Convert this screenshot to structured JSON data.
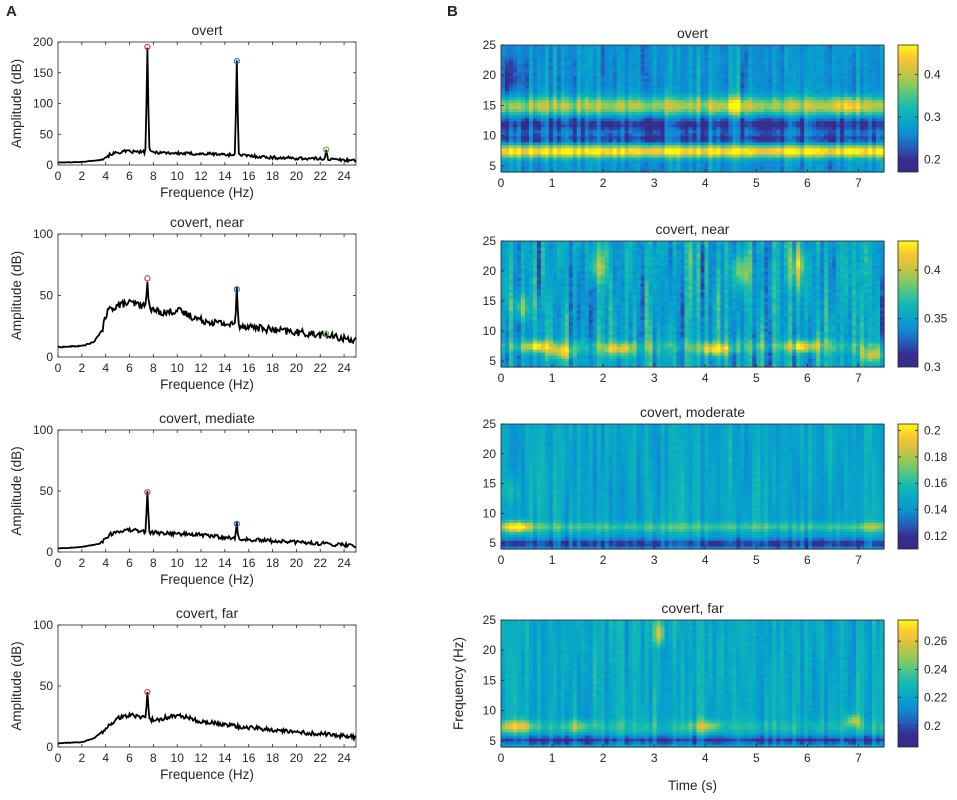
{
  "panel_labels": {
    "left": "A",
    "right": "B"
  },
  "colors": {
    "line": "#000000",
    "peak_f1": "#d62728",
    "peak_f2": "#1f5fbf",
    "peak_f3": "#5aa02c"
  },
  "chart_data": [
    {
      "id": "spec-overt",
      "type": "line",
      "title": "overt",
      "xlabel": "Frequence (Hz)",
      "ylabel": "Amplitude (dB)",
      "xlim": [
        0,
        25
      ],
      "ylim": [
        0,
        200
      ],
      "xticks": [
        0,
        2,
        4,
        6,
        8,
        10,
        12,
        14,
        16,
        18,
        20,
        22,
        24
      ],
      "yticks": [
        0,
        50,
        100,
        150,
        200
      ],
      "baseline": [
        [
          0,
          4
        ],
        [
          2,
          5
        ],
        [
          3.5,
          8
        ],
        [
          4.5,
          18
        ],
        [
          5.5,
          22
        ],
        [
          7,
          21
        ],
        [
          8,
          21
        ],
        [
          10,
          19
        ],
        [
          12,
          18
        ],
        [
          13,
          18
        ],
        [
          14,
          17
        ],
        [
          16,
          15
        ],
        [
          18,
          12
        ],
        [
          20,
          11
        ],
        [
          22,
          10
        ],
        [
          24,
          8
        ],
        [
          25,
          8
        ]
      ],
      "noise": 2.5,
      "peaks": [
        {
          "f": 7.5,
          "value": 192,
          "marker": "peak_f1"
        },
        {
          "f": 15,
          "value": 169,
          "marker": "peak_f2"
        },
        {
          "f": 22.5,
          "value": 25,
          "marker": "peak_f3"
        }
      ]
    },
    {
      "id": "spec-near",
      "type": "line",
      "title": "covert, near",
      "xlabel": "Frequence (Hz)",
      "ylabel": "Amplitude (dB)",
      "xlim": [
        0,
        25
      ],
      "ylim": [
        0,
        100
      ],
      "xticks": [
        0,
        2,
        4,
        6,
        8,
        10,
        12,
        14,
        16,
        18,
        20,
        22,
        24
      ],
      "yticks": [
        0,
        50,
        100
      ],
      "baseline": [
        [
          0,
          8
        ],
        [
          2,
          9
        ],
        [
          3,
          12
        ],
        [
          3.7,
          22
        ],
        [
          4.2,
          38
        ],
        [
          5,
          42
        ],
        [
          6,
          44
        ],
        [
          7,
          42
        ],
        [
          8,
          38
        ],
        [
          9,
          36
        ],
        [
          10,
          38
        ],
        [
          11,
          34
        ],
        [
          12,
          30
        ],
        [
          14,
          27
        ],
        [
          16,
          25
        ],
        [
          18,
          22
        ],
        [
          20,
          20
        ],
        [
          22,
          18
        ],
        [
          24,
          15
        ],
        [
          25,
          14
        ]
      ],
      "noise": 3,
      "peaks": [
        {
          "f": 7.5,
          "value": 64,
          "marker": "peak_f1"
        },
        {
          "f": 15,
          "value": 55,
          "marker": "peak_f2"
        },
        {
          "f": 22.5,
          "value": 19,
          "marker": "peak_f3"
        }
      ]
    },
    {
      "id": "spec-mediate",
      "type": "line",
      "title": "covert, mediate",
      "xlabel": "Frequence (Hz)",
      "ylabel": "Amplitude (dB)",
      "xlim": [
        0,
        25
      ],
      "ylim": [
        0,
        100
      ],
      "xticks": [
        0,
        2,
        4,
        6,
        8,
        10,
        12,
        14,
        16,
        18,
        20,
        22,
        24
      ],
      "yticks": [
        0,
        50,
        100
      ],
      "baseline": [
        [
          0,
          3
        ],
        [
          2,
          4
        ],
        [
          3.5,
          7
        ],
        [
          4.3,
          14
        ],
        [
          5,
          17
        ],
        [
          6,
          18
        ],
        [
          7,
          17
        ],
        [
          8,
          16
        ],
        [
          10,
          15
        ],
        [
          12,
          14
        ],
        [
          14,
          12
        ],
        [
          16,
          10
        ],
        [
          18,
          9
        ],
        [
          20,
          8
        ],
        [
          22,
          7
        ],
        [
          24,
          6
        ],
        [
          25,
          5
        ]
      ],
      "noise": 1.6,
      "peaks": [
        {
          "f": 7.5,
          "value": 49,
          "marker": "peak_f1"
        },
        {
          "f": 15,
          "value": 23,
          "marker": "peak_f2"
        }
      ]
    },
    {
      "id": "spec-far",
      "type": "line",
      "title": "covert, far",
      "xlabel": "Frequence (Hz)",
      "ylabel": "Amplitude (dB)",
      "xlim": [
        0,
        25
      ],
      "ylim": [
        0,
        100
      ],
      "xticks": [
        0,
        2,
        4,
        6,
        8,
        10,
        12,
        14,
        16,
        18,
        20,
        22,
        24
      ],
      "yticks": [
        0,
        50,
        100
      ],
      "baseline": [
        [
          0,
          3
        ],
        [
          2,
          4
        ],
        [
          3,
          7
        ],
        [
          4,
          15
        ],
        [
          5,
          24
        ],
        [
          6,
          26
        ],
        [
          7,
          25
        ],
        [
          8,
          22
        ],
        [
          9,
          24
        ],
        [
          10,
          26
        ],
        [
          11,
          24
        ],
        [
          12,
          21
        ],
        [
          14,
          18
        ],
        [
          16,
          16
        ],
        [
          18,
          14
        ],
        [
          20,
          12
        ],
        [
          22,
          11
        ],
        [
          24,
          9
        ],
        [
          25,
          8
        ]
      ],
      "noise": 1.8,
      "peaks": [
        {
          "f": 7.5,
          "value": 45,
          "marker": "peak_f1"
        }
      ]
    },
    {
      "id": "tf-overt",
      "type": "heatmap",
      "title": "overt",
      "xlim": [
        0,
        7.5
      ],
      "ylim": [
        4,
        25
      ],
      "xticks": [
        0,
        1,
        2,
        3,
        4,
        5,
        6,
        7
      ],
      "yticks": [
        5,
        10,
        15,
        20,
        25
      ],
      "xlabel": "",
      "ylabel": "",
      "colorbar": {
        "min": 0.17,
        "max": 0.47,
        "ticks": [
          0.2,
          0.3,
          0.4
        ]
      },
      "background": 0.27,
      "stripe_noise": 0.05,
      "bands": [
        {
          "f": 7.5,
          "width": 1.0,
          "amp": 0.2
        },
        {
          "f": 15,
          "width": 1.5,
          "amp": 0.13
        },
        {
          "f": 12,
          "width": 1.2,
          "amp": -0.06
        },
        {
          "f": 9.5,
          "width": 0.8,
          "amp": -0.05
        }
      ],
      "blobs": [
        {
          "t": 4.6,
          "f": 15,
          "st": 0.2,
          "sf": 1.5,
          "amp": 0.07
        },
        {
          "t": 6.8,
          "f": 15,
          "st": 0.3,
          "sf": 1.5,
          "amp": 0.06
        },
        {
          "t": 0.2,
          "f": 20,
          "st": 0.3,
          "sf": 4,
          "amp": -0.05
        }
      ]
    },
    {
      "id": "tf-near",
      "type": "heatmap",
      "title": "covert, near",
      "xlim": [
        0,
        7.5
      ],
      "ylim": [
        4,
        25
      ],
      "xticks": [
        0,
        1,
        2,
        3,
        4,
        5,
        6,
        7
      ],
      "yticks": [
        5,
        10,
        15,
        20,
        25
      ],
      "xlabel": "",
      "ylabel": "",
      "colorbar": {
        "min": 0.3,
        "max": 0.43,
        "ticks": [
          0.3,
          0.35,
          0.4
        ]
      },
      "background": 0.35,
      "stripe_noise": 0.035,
      "bands": [
        {
          "f": 7.5,
          "width": 1.0,
          "amp": 0.02
        }
      ],
      "blobs": [
        {
          "t": 0.7,
          "f": 7.5,
          "st": 0.3,
          "sf": 1,
          "amp": 0.06
        },
        {
          "t": 1.2,
          "f": 6.5,
          "st": 0.25,
          "sf": 1,
          "amp": 0.05
        },
        {
          "t": 2.3,
          "f": 7,
          "st": 0.3,
          "sf": 1,
          "amp": 0.05
        },
        {
          "t": 4.2,
          "f": 7,
          "st": 0.3,
          "sf": 1,
          "amp": 0.06
        },
        {
          "t": 5.9,
          "f": 7.5,
          "st": 0.3,
          "sf": 1,
          "amp": 0.06
        },
        {
          "t": 7.3,
          "f": 6,
          "st": 0.25,
          "sf": 1,
          "amp": 0.05
        },
        {
          "t": 0.4,
          "f": 14,
          "st": 0.2,
          "sf": 2,
          "amp": 0.04
        },
        {
          "t": 1.9,
          "f": 21,
          "st": 0.15,
          "sf": 3,
          "amp": 0.05
        },
        {
          "t": 4.7,
          "f": 20,
          "st": 0.15,
          "sf": 3,
          "amp": 0.05
        },
        {
          "t": 5.8,
          "f": 21,
          "st": 0.15,
          "sf": 3,
          "amp": 0.05
        }
      ]
    },
    {
      "id": "tf-moderate",
      "type": "heatmap",
      "title": "covert, moderate",
      "xlim": [
        0,
        7.5
      ],
      "ylim": [
        4,
        25
      ],
      "xticks": [
        0,
        1,
        2,
        3,
        4,
        5,
        6,
        7
      ],
      "yticks": [
        5,
        10,
        15,
        20,
        25
      ],
      "xlabel": "",
      "ylabel": "",
      "colorbar": {
        "min": 0.11,
        "max": 0.205,
        "ticks": [
          0.12,
          0.14,
          0.16,
          0.18,
          0.2
        ]
      },
      "background": 0.148,
      "stripe_noise": 0.012,
      "bands": [
        {
          "f": 7.8,
          "width": 0.7,
          "amp": 0.018
        },
        {
          "f": 5.0,
          "width": 0.8,
          "amp": -0.025
        }
      ],
      "blobs": [
        {
          "t": 0.3,
          "f": 7.8,
          "st": 0.25,
          "sf": 0.9,
          "amp": 0.055
        },
        {
          "t": 0.2,
          "f": 14,
          "st": 0.15,
          "sf": 2,
          "amp": 0.012
        },
        {
          "t": 7.3,
          "f": 7.8,
          "st": 0.3,
          "sf": 0.8,
          "amp": 0.012
        }
      ]
    },
    {
      "id": "tf-far",
      "type": "heatmap",
      "title": "covert, far",
      "xlim": [
        0,
        7.5
      ],
      "ylim": [
        4,
        25
      ],
      "xticks": [
        0,
        1,
        2,
        3,
        4,
        5,
        6,
        7
      ],
      "yticks": [
        5,
        10,
        15,
        20,
        25
      ],
      "xlabel": "Time (s)",
      "ylabel": "Frequency (Hz)",
      "colorbar": {
        "min": 0.185,
        "max": 0.275,
        "ticks": [
          0.2,
          0.22,
          0.24,
          0.26
        ]
      },
      "background": 0.222,
      "stripe_noise": 0.013,
      "bands": [
        {
          "f": 5.2,
          "width": 0.7,
          "amp": -0.025
        },
        {
          "f": 7.5,
          "width": 1.0,
          "amp": 0.008
        }
      ],
      "blobs": [
        {
          "t": 0.3,
          "f": 7.5,
          "st": 0.35,
          "sf": 1,
          "amp": 0.035
        },
        {
          "t": 1.5,
          "f": 7.5,
          "st": 0.3,
          "sf": 1,
          "amp": 0.02
        },
        {
          "t": 3.1,
          "f": 23,
          "st": 0.1,
          "sf": 2,
          "amp": 0.04
        },
        {
          "t": 4.0,
          "f": 7.5,
          "st": 0.3,
          "sf": 1,
          "amp": 0.025
        },
        {
          "t": 6.9,
          "f": 8.5,
          "st": 0.15,
          "sf": 1,
          "amp": 0.03
        }
      ]
    }
  ]
}
